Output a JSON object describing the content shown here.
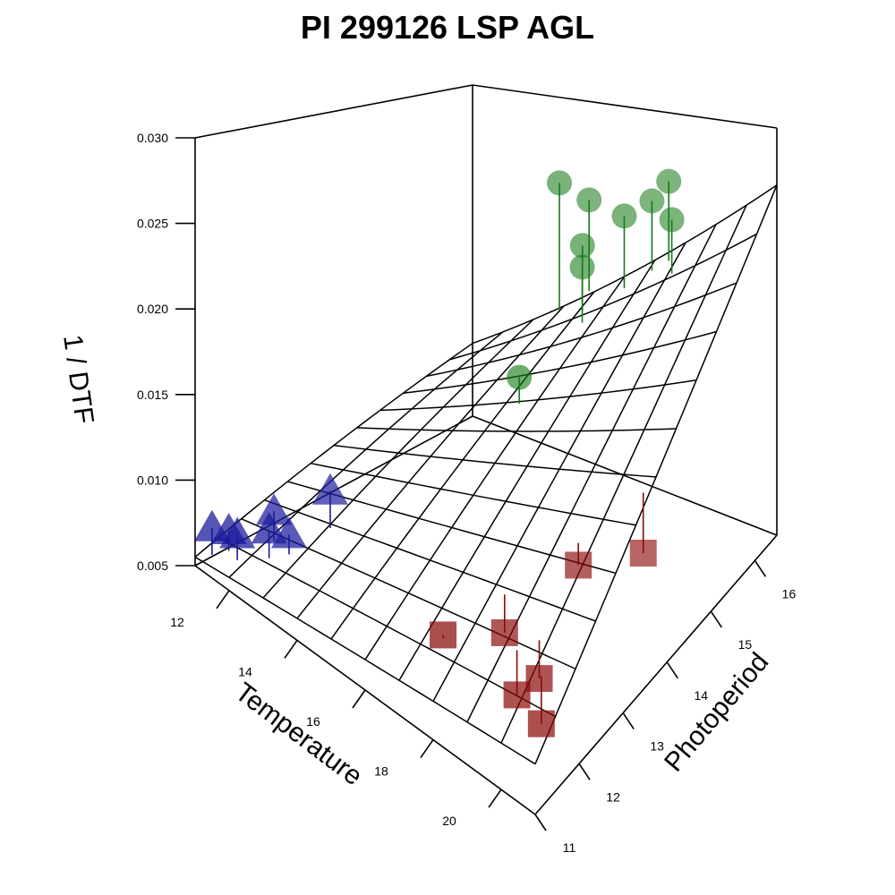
{
  "chart_data": {
    "type": "scatter",
    "subtype": "3d-scatter-with-fitted-surface",
    "title": "PI 299126 LSP AGL",
    "xlabel": "Temperature",
    "ylabel": "Photoperiod",
    "zlabel": "1 / DTF",
    "xlim": [
      11,
      21
    ],
    "ylim": [
      11,
      16.5
    ],
    "zlim": [
      0.005,
      0.03
    ],
    "xticks": [
      "12",
      "14",
      "16",
      "18",
      "20"
    ],
    "yticks": [
      "11",
      "12",
      "13",
      "14",
      "15",
      "16"
    ],
    "zticks": [
      "0.005",
      "0.010",
      "0.015",
      "0.020",
      "0.025",
      "0.030"
    ],
    "grid": true,
    "surface": {
      "description": "fitted plane",
      "x_range": [
        11,
        21
      ],
      "y_range": [
        11,
        16.5
      ],
      "corner_values": {
        "x11_y11": 0.0055,
        "x21_y11": 0.0082,
        "x11_y16.5": 0.0105,
        "x21_y16.5": 0.0265
      },
      "grid_steps_x": 10,
      "grid_steps_y": 12
    },
    "series": [
      {
        "marker": "triangle",
        "color": "#1a1a9c",
        "points": [
          {
            "x": 11.2,
            "y": 11.2,
            "z": 0.0072,
            "fit": 0.0056
          },
          {
            "x": 11.4,
            "y": 11.4,
            "z": 0.007,
            "fit": 0.0058
          },
          {
            "x": 11.8,
            "y": 11.3,
            "z": 0.0075,
            "fit": 0.006
          },
          {
            "x": 12.3,
            "y": 11.6,
            "z": 0.008,
            "fit": 0.0063
          },
          {
            "x": 12.0,
            "y": 11.9,
            "z": 0.0082,
            "fit": 0.0064
          },
          {
            "x": 12.6,
            "y": 11.8,
            "z": 0.0078,
            "fit": 0.0066
          },
          {
            "x": 12.8,
            "y": 12.5,
            "z": 0.0095,
            "fit": 0.0072
          }
        ]
      },
      {
        "marker": "square",
        "color": "#8b0a0a",
        "points": [
          {
            "x": 17.2,
            "y": 11.8,
            "z": 0.0082,
            "fit": 0.008
          },
          {
            "x": 17.8,
            "y": 12.7,
            "z": 0.0068,
            "fit": 0.0092
          },
          {
            "x": 19.4,
            "y": 12.3,
            "z": 0.0072,
            "fit": 0.0096
          },
          {
            "x": 19.0,
            "y": 12.1,
            "z": 0.0062,
            "fit": 0.009
          },
          {
            "x": 20.0,
            "y": 11.9,
            "z": 0.0064,
            "fit": 0.0094
          },
          {
            "x": 18.8,
            "y": 13.6,
            "z": 0.0098,
            "fit": 0.0112
          },
          {
            "x": 19.7,
            "y": 14.4,
            "z": 0.0092,
            "fit": 0.013
          }
        ]
      },
      {
        "marker": "circle",
        "color": "#157a15",
        "points": [
          {
            "x": 14.8,
            "y": 15.9,
            "z": 0.0255,
            "fit": 0.0168
          },
          {
            "x": 15.3,
            "y": 16.2,
            "z": 0.024,
            "fit": 0.0178
          },
          {
            "x": 15.7,
            "y": 15.8,
            "z": 0.022,
            "fit": 0.0176
          },
          {
            "x": 16.0,
            "y": 15.6,
            "z": 0.0212,
            "fit": 0.0175
          },
          {
            "x": 16.6,
            "y": 16.1,
            "z": 0.0238,
            "fit": 0.019
          },
          {
            "x": 17.2,
            "y": 16.3,
            "z": 0.0246,
            "fit": 0.02
          },
          {
            "x": 17.6,
            "y": 16.4,
            "z": 0.0258,
            "fit": 0.0206
          },
          {
            "x": 18.0,
            "y": 16.2,
            "z": 0.024,
            "fit": 0.0205
          },
          {
            "x": 15.8,
            "y": 14.4,
            "z": 0.0165,
            "fit": 0.0148
          }
        ]
      }
    ]
  }
}
